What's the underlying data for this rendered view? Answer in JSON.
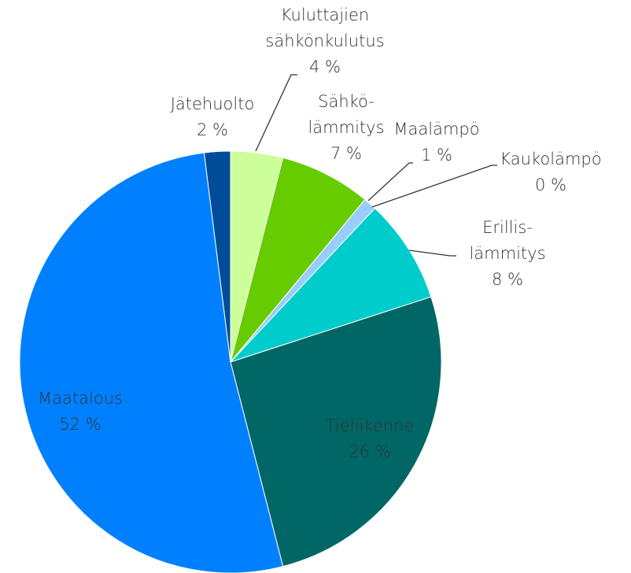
{
  "chart_data": {
    "type": "pie",
    "categories": [
      "Kuluttajien\nsähkönkulutus",
      "Sähkö-\nlämmitys",
      "Maalämpö",
      "Kaukolämpö",
      "Erillis-\nlämmitys",
      "Tieliikenne",
      "Maatalous",
      "Jätehuolto"
    ],
    "values": [
      4,
      7,
      1,
      0,
      8,
      26,
      52,
      2
    ],
    "value_labels": [
      "4 %",
      "7 %",
      "1 %",
      "0 %",
      "8 %",
      "26 %",
      "52 %",
      "2 %"
    ],
    "colors": [
      "#ccff99",
      "#66cc00",
      "#99ccff",
      "#ffcc00",
      "#00cccc",
      "#006666",
      "#0080ff",
      "#004c99"
    ]
  }
}
